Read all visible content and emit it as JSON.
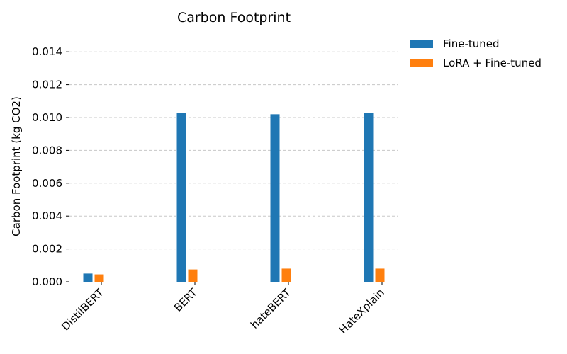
{
  "chart_data": {
    "type": "bar",
    "title": "Carbon Footprint",
    "xlabel": "",
    "ylabel": "Carbon Footprint (kg CO2)",
    "categories": [
      "DistilBERT",
      "BERT",
      "hateBERT",
      "HateXplain"
    ],
    "series": [
      {
        "name": "Fine-tuned",
        "color": "#1f77b4",
        "values": [
          0.0005,
          0.0103,
          0.0102,
          0.0103
        ]
      },
      {
        "name": "LoRA + Fine-tuned",
        "color": "#ff7f0e",
        "values": [
          0.00045,
          0.00075,
          0.0008,
          0.0008
        ]
      }
    ],
    "ylim": [
      0,
      0.015
    ],
    "yticks": [
      "0.000",
      "0.002",
      "0.004",
      "0.006",
      "0.008",
      "0.010",
      "0.012",
      "0.014"
    ],
    "ytick_values": [
      0,
      0.002,
      0.004,
      0.006,
      0.008,
      0.01,
      0.012,
      0.014
    ],
    "grid": "horizontal dashed",
    "legend_position": "top-right, outside plot"
  }
}
